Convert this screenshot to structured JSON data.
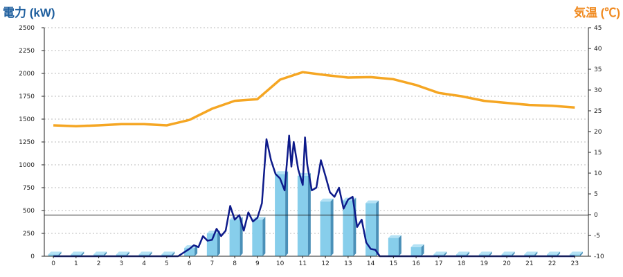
{
  "chart_data": {
    "type": "bar",
    "title_left": "電力 (kW)",
    "title_right": "気温 (℃)",
    "categories": [
      "0",
      "1",
      "2",
      "3",
      "4",
      "5",
      "6",
      "7",
      "8",
      "9",
      "10",
      "11",
      "12",
      "13",
      "14",
      "15",
      "16",
      "17",
      "18",
      "19",
      "20",
      "21",
      "22",
      "23"
    ],
    "ylim_left": [
      0,
      2500
    ],
    "yticks_left": [
      "0",
      "250",
      "500",
      "750",
      "1000",
      "1250",
      "1500",
      "1750",
      "2000",
      "2250",
      "2500"
    ],
    "ylim_right": [
      -10,
      45
    ],
    "yticks_right": [
      "-10",
      "-5",
      "0",
      "5",
      "10",
      "15",
      "20",
      "25",
      "30",
      "35",
      "40",
      "45"
    ],
    "grid": true,
    "series": [
      {
        "kind": "bar",
        "axis": "left",
        "values": [
          20,
          20,
          20,
          20,
          20,
          20,
          90,
          250,
          400,
          400,
          900,
          880,
          600,
          610,
          580,
          200,
          100,
          20,
          20,
          20,
          20,
          20,
          20,
          20
        ]
      },
      {
        "kind": "line",
        "axis": "left",
        "x": [
          0,
          0.5,
          1,
          1.5,
          2,
          2.5,
          3,
          3.5,
          4,
          4.5,
          5,
          5.5,
          6,
          6.2,
          6.4,
          6.6,
          6.8,
          7,
          7.2,
          7.4,
          7.6,
          7.8,
          8,
          8.2,
          8.4,
          8.6,
          8.8,
          9,
          9.2,
          9.4,
          9.6,
          9.8,
          10,
          10.2,
          10.4,
          10.5,
          10.6,
          10.8,
          11,
          11.1,
          11.2,
          11.4,
          11.6,
          11.8,
          12,
          12.2,
          12.4,
          12.6,
          12.8,
          13,
          13.2,
          13.4,
          13.6,
          13.8,
          14,
          14.2,
          14.4,
          14.6,
          14.8,
          15,
          15.2,
          15.4,
          15.6,
          15.8,
          16,
          16.2,
          16.4,
          16.6,
          16.8,
          17,
          17.5,
          18,
          18.5,
          19,
          19.5,
          20,
          20.5,
          21,
          21.5,
          22,
          22.5,
          23
        ],
        "values": [
          0,
          0,
          0,
          0,
          0,
          0,
          0,
          0,
          0,
          0,
          0,
          0,
          80,
          120,
          100,
          220,
          170,
          180,
          300,
          220,
          280,
          550,
          400,
          450,
          280,
          480,
          380,
          420,
          580,
          1280,
          1050,
          900,
          850,
          720,
          1320,
          980,
          1250,
          950,
          780,
          1300,
          1000,
          720,
          750,
          1050,
          880,
          700,
          650,
          750,
          520,
          620,
          650,
          320,
          400,
          150,
          80,
          70,
          0,
          0,
          0,
          0,
          0,
          0,
          0,
          0,
          0,
          0,
          0,
          0,
          0,
          0,
          0,
          0,
          0,
          0,
          0,
          0,
          0,
          0,
          0,
          0,
          0,
          0
        ]
      },
      {
        "kind": "line",
        "axis": "right",
        "x": [
          0,
          1,
          2,
          3,
          4,
          5,
          6,
          7,
          8,
          9,
          10,
          11,
          12,
          13,
          14,
          15,
          16,
          17,
          18,
          19,
          20,
          21,
          22,
          23
        ],
        "values": [
          21.5,
          21.3,
          21.5,
          21.8,
          21.8,
          21.5,
          22.8,
          25.5,
          27.4,
          27.8,
          32.5,
          34.3,
          33.6,
          33.0,
          33.1,
          32.6,
          31.2,
          29.3,
          28.5,
          27.4,
          26.9,
          26.4,
          26.2,
          25.8
        ]
      }
    ],
    "reference_line": {
      "axis": "left",
      "value": 450
    },
    "colors": {
      "bar_front": "#87ceeb",
      "bar_side": "#4a90b8",
      "bar_top": "#b4e2f5",
      "power_line": "#0d1a8a",
      "temp_line": "#f5a623",
      "grid": "#bbbbbb",
      "title_left": "#1f5f9e",
      "title_right": "#f08a20"
    }
  }
}
